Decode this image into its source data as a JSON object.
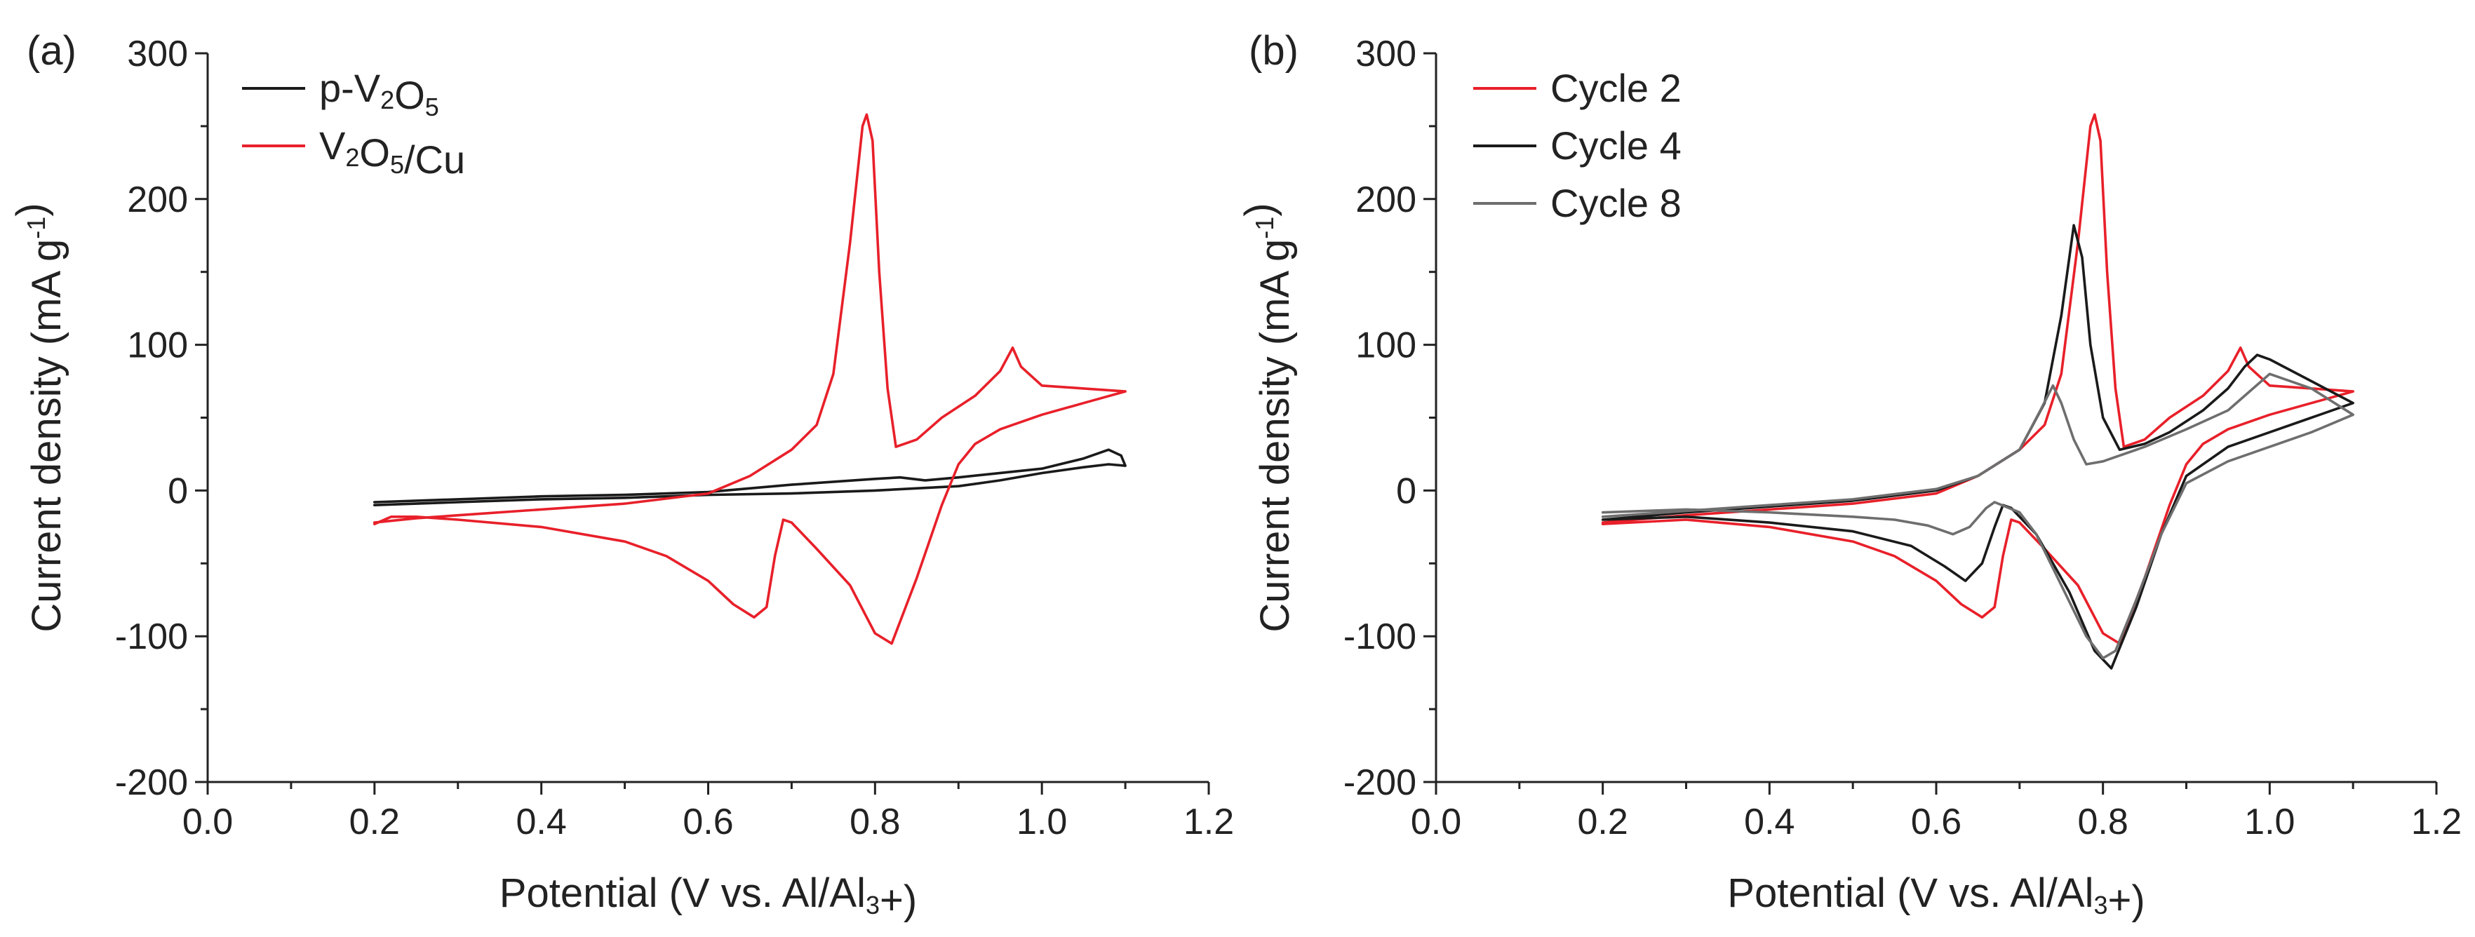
{
  "chart_data": [
    {
      "type": "line",
      "panel_label": "(a)",
      "xlabel": "Potential (V vs. Al/Al3+)",
      "ylabel": "Current density (mA g-1)",
      "xlim": [
        0.0,
        1.2
      ],
      "ylim": [
        -200,
        300
      ],
      "xticks": [
        "0.0",
        "0.2",
        "0.4",
        "0.6",
        "0.8",
        "1.0",
        "1.2"
      ],
      "yticks": [
        "-200",
        "-100",
        "0",
        "100",
        "200",
        "300"
      ],
      "legend_position": "top-left",
      "series": [
        {
          "name": "p-V2O5",
          "color": "#1a1a1a",
          "points": [
            [
              0.2,
              -8
            ],
            [
              0.3,
              -6
            ],
            [
              0.4,
              -4
            ],
            [
              0.5,
              -3
            ],
            [
              0.6,
              -1
            ],
            [
              0.7,
              4
            ],
            [
              0.8,
              8
            ],
            [
              0.83,
              9
            ],
            [
              0.86,
              7
            ],
            [
              0.9,
              9
            ],
            [
              1.0,
              15
            ],
            [
              1.05,
              22
            ],
            [
              1.08,
              28
            ],
            [
              1.095,
              24
            ],
            [
              1.1,
              17
            ],
            [
              1.08,
              18
            ],
            [
              1.05,
              16
            ],
            [
              1.0,
              12
            ],
            [
              0.95,
              7
            ],
            [
              0.9,
              3
            ],
            [
              0.8,
              0
            ],
            [
              0.7,
              -2
            ],
            [
              0.6,
              -3
            ],
            [
              0.5,
              -5
            ],
            [
              0.4,
              -6
            ],
            [
              0.3,
              -8
            ],
            [
              0.2,
              -10
            ]
          ]
        },
        {
          "name": "V2O5/Cu",
          "color": "#e8202a",
          "points": [
            [
              0.2,
              -22
            ],
            [
              0.25,
              -19
            ],
            [
              0.3,
              -17
            ],
            [
              0.4,
              -13
            ],
            [
              0.5,
              -9
            ],
            [
              0.6,
              -2
            ],
            [
              0.65,
              10
            ],
            [
              0.7,
              28
            ],
            [
              0.73,
              45
            ],
            [
              0.75,
              80
            ],
            [
              0.77,
              170
            ],
            [
              0.785,
              250
            ],
            [
              0.79,
              258
            ],
            [
              0.797,
              240
            ],
            [
              0.805,
              150
            ],
            [
              0.815,
              70
            ],
            [
              0.825,
              30
            ],
            [
              0.85,
              35
            ],
            [
              0.88,
              50
            ],
            [
              0.92,
              65
            ],
            [
              0.95,
              82
            ],
            [
              0.965,
              98
            ],
            [
              0.975,
              85
            ],
            [
              1.0,
              72
            ],
            [
              1.05,
              70
            ],
            [
              1.1,
              68
            ],
            [
              1.05,
              60
            ],
            [
              1.0,
              52
            ],
            [
              0.95,
              42
            ],
            [
              0.92,
              32
            ],
            [
              0.9,
              18
            ],
            [
              0.88,
              -10
            ],
            [
              0.85,
              -60
            ],
            [
              0.82,
              -105
            ],
            [
              0.8,
              -98
            ],
            [
              0.77,
              -65
            ],
            [
              0.73,
              -40
            ],
            [
              0.7,
              -22
            ],
            [
              0.69,
              -20
            ],
            [
              0.68,
              -45
            ],
            [
              0.67,
              -80
            ],
            [
              0.655,
              -87
            ],
            [
              0.63,
              -78
            ],
            [
              0.6,
              -62
            ],
            [
              0.55,
              -45
            ],
            [
              0.5,
              -35
            ],
            [
              0.4,
              -25
            ],
            [
              0.3,
              -20
            ],
            [
              0.25,
              -18
            ],
            [
              0.22,
              -18
            ],
            [
              0.2,
              -23
            ]
          ]
        }
      ]
    },
    {
      "type": "line",
      "panel_label": "(b)",
      "xlabel": "Potential (V vs. Al/Al3+)",
      "ylabel": "Current density (mA g-1)",
      "xlim": [
        0.0,
        1.2
      ],
      "ylim": [
        -200,
        300
      ],
      "xticks": [
        "0.0",
        "0.2",
        "0.4",
        "0.6",
        "0.8",
        "1.0",
        "1.2"
      ],
      "yticks": [
        "-200",
        "-100",
        "0",
        "100",
        "200",
        "300"
      ],
      "legend_position": "top-left",
      "series": [
        {
          "name": "Cycle 2",
          "color": "#e8202a",
          "points": [
            [
              0.2,
              -22
            ],
            [
              0.3,
              -17
            ],
            [
              0.4,
              -13
            ],
            [
              0.5,
              -9
            ],
            [
              0.6,
              -2
            ],
            [
              0.65,
              10
            ],
            [
              0.7,
              28
            ],
            [
              0.73,
              45
            ],
            [
              0.75,
              80
            ],
            [
              0.77,
              170
            ],
            [
              0.785,
              250
            ],
            [
              0.79,
              258
            ],
            [
              0.797,
              240
            ],
            [
              0.805,
              150
            ],
            [
              0.815,
              70
            ],
            [
              0.825,
              30
            ],
            [
              0.85,
              35
            ],
            [
              0.88,
              50
            ],
            [
              0.92,
              65
            ],
            [
              0.95,
              82
            ],
            [
              0.965,
              98
            ],
            [
              0.975,
              85
            ],
            [
              1.0,
              72
            ],
            [
              1.05,
              70
            ],
            [
              1.1,
              68
            ],
            [
              1.05,
              60
            ],
            [
              1.0,
              52
            ],
            [
              0.95,
              42
            ],
            [
              0.92,
              32
            ],
            [
              0.9,
              18
            ],
            [
              0.88,
              -10
            ],
            [
              0.85,
              -60
            ],
            [
              0.82,
              -105
            ],
            [
              0.8,
              -98
            ],
            [
              0.77,
              -65
            ],
            [
              0.73,
              -40
            ],
            [
              0.7,
              -22
            ],
            [
              0.69,
              -20
            ],
            [
              0.68,
              -45
            ],
            [
              0.67,
              -80
            ],
            [
              0.655,
              -87
            ],
            [
              0.63,
              -78
            ],
            [
              0.6,
              -62
            ],
            [
              0.55,
              -45
            ],
            [
              0.5,
              -35
            ],
            [
              0.4,
              -25
            ],
            [
              0.3,
              -20
            ],
            [
              0.2,
              -23
            ]
          ]
        },
        {
          "name": "Cycle 4",
          "color": "#1a1a1a",
          "points": [
            [
              0.2,
              -20
            ],
            [
              0.3,
              -15
            ],
            [
              0.4,
              -11
            ],
            [
              0.5,
              -7
            ],
            [
              0.6,
              0
            ],
            [
              0.65,
              10
            ],
            [
              0.7,
              28
            ],
            [
              0.73,
              60
            ],
            [
              0.75,
              120
            ],
            [
              0.765,
              182
            ],
            [
              0.775,
              160
            ],
            [
              0.785,
              100
            ],
            [
              0.8,
              50
            ],
            [
              0.82,
              28
            ],
            [
              0.85,
              32
            ],
            [
              0.88,
              40
            ],
            [
              0.92,
              55
            ],
            [
              0.95,
              70
            ],
            [
              0.97,
              85
            ],
            [
              0.985,
              93
            ],
            [
              1.0,
              90
            ],
            [
              1.05,
              75
            ],
            [
              1.1,
              60
            ],
            [
              1.05,
              50
            ],
            [
              1.0,
              40
            ],
            [
              0.95,
              30
            ],
            [
              0.9,
              10
            ],
            [
              0.87,
              -30
            ],
            [
              0.84,
              -80
            ],
            [
              0.81,
              -122
            ],
            [
              0.79,
              -110
            ],
            [
              0.76,
              -70
            ],
            [
              0.72,
              -30
            ],
            [
              0.69,
              -12
            ],
            [
              0.68,
              -10
            ],
            [
              0.67,
              -25
            ],
            [
              0.655,
              -50
            ],
            [
              0.635,
              -62
            ],
            [
              0.61,
              -52
            ],
            [
              0.57,
              -38
            ],
            [
              0.5,
              -28
            ],
            [
              0.4,
              -22
            ],
            [
              0.3,
              -18
            ],
            [
              0.2,
              -20
            ]
          ]
        },
        {
          "name": "Cycle 8",
          "color": "#6e6e6e",
          "points": [
            [
              0.2,
              -18
            ],
            [
              0.3,
              -14
            ],
            [
              0.4,
              -10
            ],
            [
              0.5,
              -6
            ],
            [
              0.6,
              1
            ],
            [
              0.65,
              10
            ],
            [
              0.7,
              28
            ],
            [
              0.725,
              55
            ],
            [
              0.74,
              72
            ],
            [
              0.75,
              60
            ],
            [
              0.765,
              35
            ],
            [
              0.78,
              18
            ],
            [
              0.8,
              20
            ],
            [
              0.85,
              30
            ],
            [
              0.9,
              42
            ],
            [
              0.95,
              55
            ],
            [
              0.98,
              70
            ],
            [
              1.0,
              80
            ],
            [
              1.05,
              70
            ],
            [
              1.1,
              52
            ],
            [
              1.05,
              40
            ],
            [
              1.0,
              30
            ],
            [
              0.95,
              20
            ],
            [
              0.9,
              5
            ],
            [
              0.87,
              -30
            ],
            [
              0.84,
              -75
            ],
            [
              0.815,
              -110
            ],
            [
              0.8,
              -115
            ],
            [
              0.78,
              -100
            ],
            [
              0.75,
              -65
            ],
            [
              0.72,
              -30
            ],
            [
              0.7,
              -15
            ],
            [
              0.67,
              -8
            ],
            [
              0.66,
              -12
            ],
            [
              0.64,
              -25
            ],
            [
              0.62,
              -30
            ],
            [
              0.59,
              -24
            ],
            [
              0.55,
              -20
            ],
            [
              0.5,
              -18
            ],
            [
              0.4,
              -15
            ],
            [
              0.3,
              -13
            ],
            [
              0.2,
              -15
            ]
          ]
        }
      ]
    }
  ]
}
